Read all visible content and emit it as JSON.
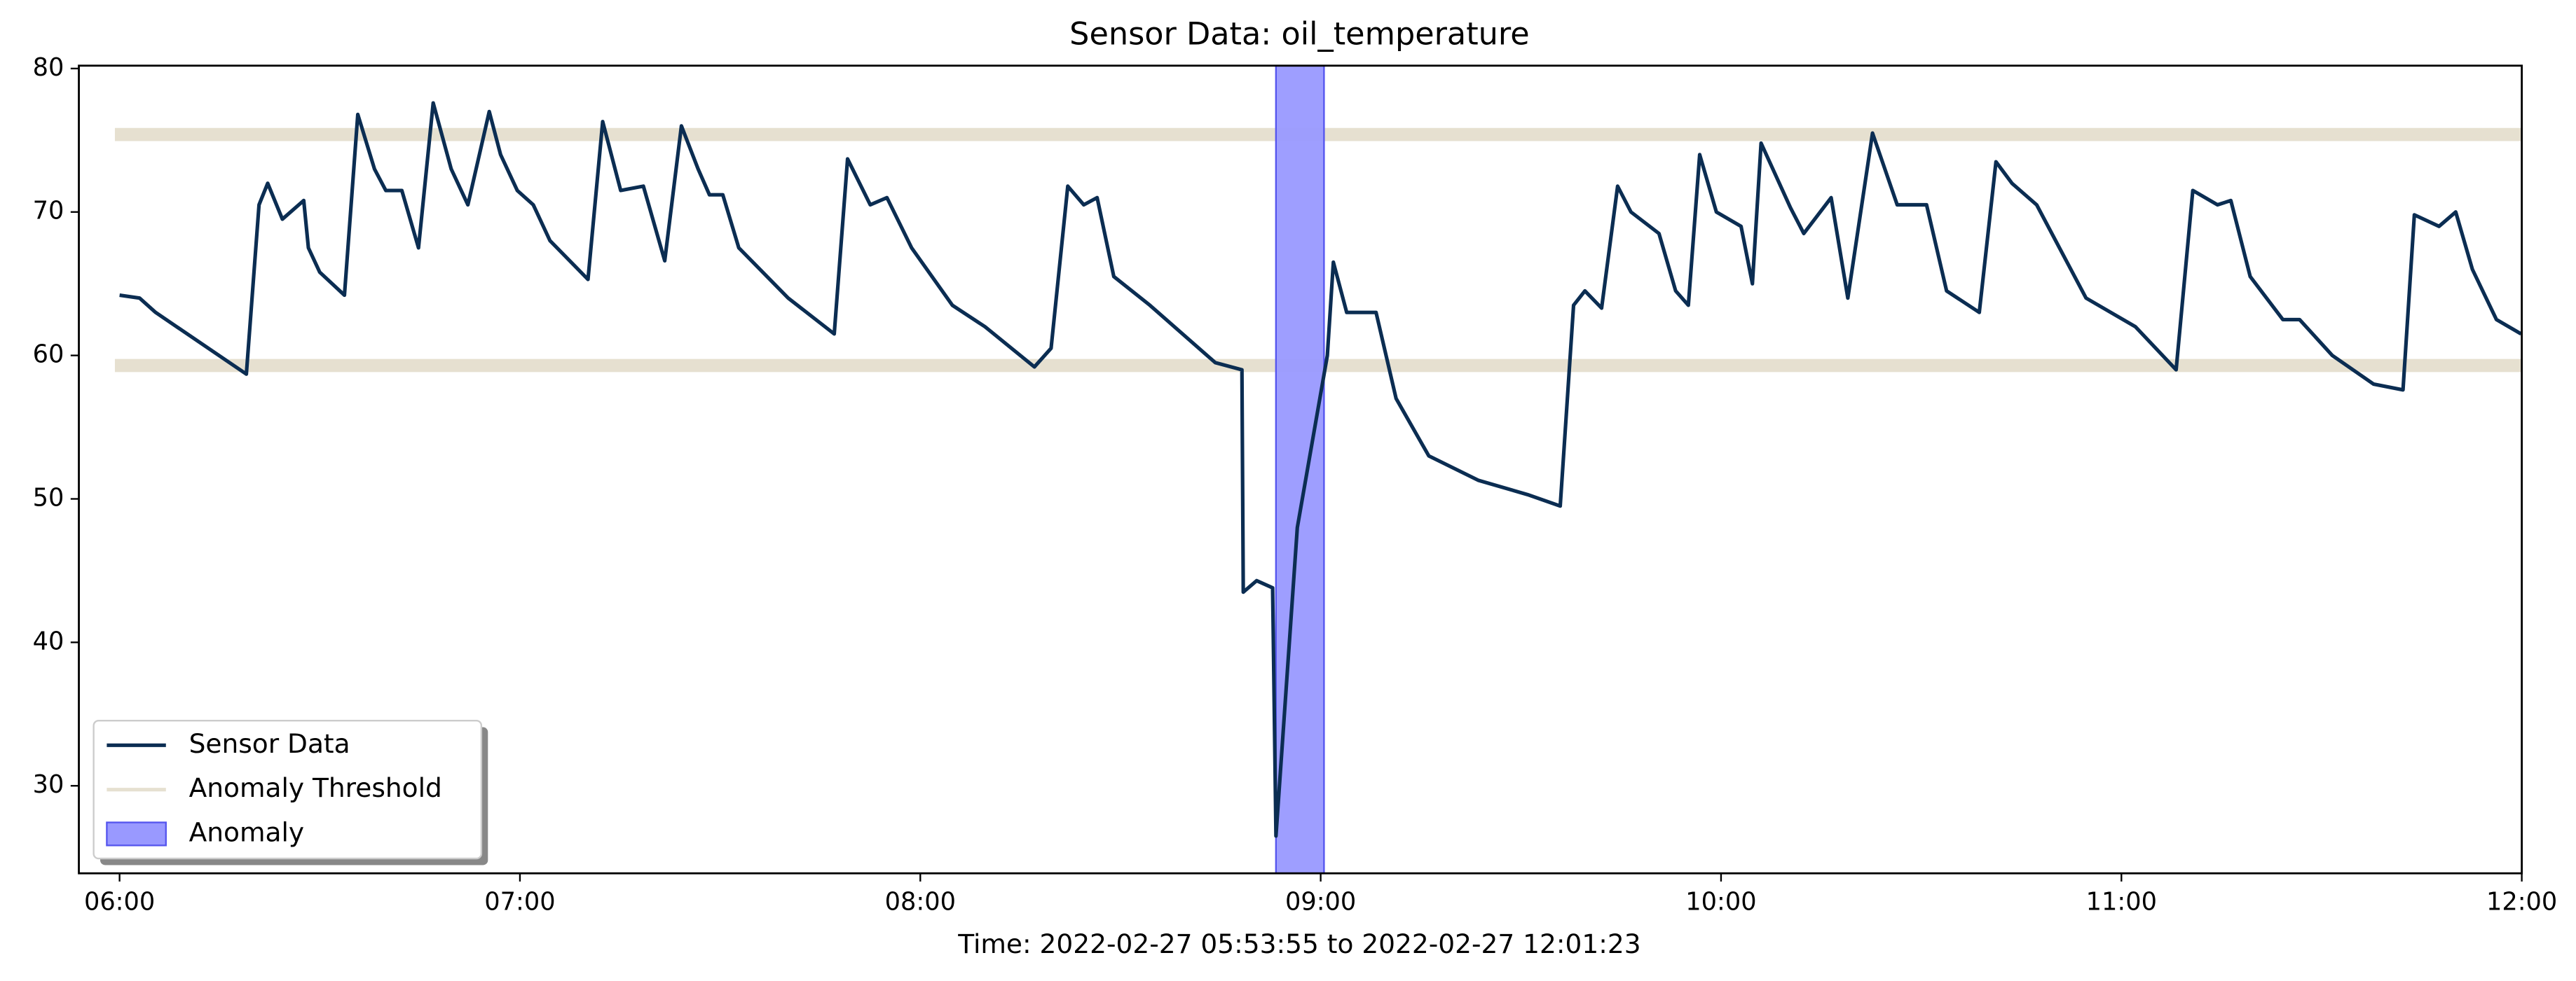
{
  "chart_data": {
    "type": "line",
    "title": "Sensor Data: oil_temperature",
    "x_label": "Time: 2022-02-27 05:53:55 to 2022-02-27 12:01:23",
    "xlim": [
      353.9,
      720
    ],
    "xticks": [
      {
        "value": 360,
        "label": "06:00"
      },
      {
        "value": 420,
        "label": "07:00"
      },
      {
        "value": 480,
        "label": "08:00"
      },
      {
        "value": 540,
        "label": "09:00"
      },
      {
        "value": 600,
        "label": "10:00"
      },
      {
        "value": 660,
        "label": "11:00"
      },
      {
        "value": 720,
        "label": "12:00"
      }
    ],
    "ylim": [
      23.9,
      80.2
    ],
    "yticks": [
      30,
      40,
      50,
      60,
      70,
      80
    ],
    "legend": "lower left",
    "series": [
      {
        "name": "Sensor Data",
        "color": "#0b2d52",
        "x": [
          360.0,
          363.0,
          365.4,
          379.0,
          380.9,
          382.2,
          384.4,
          387.6,
          388.3,
          390.0,
          393.7,
          395.7,
          398.2,
          399.9,
          402.3,
          404.8,
          407.0,
          409.7,
          412.2,
          415.4,
          417.1,
          419.6,
          422.0,
          424.5,
          430.2,
          432.4,
          435.1,
          438.5,
          441.7,
          444.2,
          446.7,
          448.4,
          450.4,
          452.8,
          460.2,
          467.1,
          469.1,
          472.5,
          475.0,
          478.7,
          484.8,
          489.7,
          497.1,
          499.6,
          502.1,
          504.5,
          506.5,
          509.0,
          514.4,
          524.2,
          528.2,
          528.4,
          530.4,
          532.8,
          533.3,
          536.5,
          541.0,
          541.9,
          543.9,
          548.3,
          551.3,
          556.2,
          563.6,
          571.0,
          575.9,
          577.9,
          579.6,
          582.1,
          584.5,
          586.5,
          590.7,
          593.2,
          595.1,
          596.8,
          599.3,
          603.0,
          604.7,
          606.0,
          610.4,
          612.4,
          616.5,
          619.0,
          622.7,
          626.4,
          630.8,
          633.8,
          638.7,
          641.2,
          643.6,
          647.3,
          654.7,
          662.1,
          668.2,
          670.7,
          674.4,
          676.4,
          679.3,
          684.2,
          686.7,
          691.6,
          697.8,
          702.2,
          703.9,
          707.6,
          710.1,
          712.6,
          716.2,
          719.9
        ],
        "values": [
          64.2,
          64.0,
          63.0,
          58.7,
          70.5,
          72.0,
          69.5,
          70.8,
          67.5,
          65.8,
          64.2,
          76.8,
          73.0,
          71.5,
          71.5,
          67.5,
          77.6,
          73.0,
          70.5,
          77.0,
          74.0,
          71.5,
          70.5,
          68.0,
          65.3,
          76.3,
          71.5,
          71.8,
          66.6,
          76.0,
          73.0,
          71.2,
          71.2,
          67.5,
          64.0,
          61.5,
          73.7,
          70.5,
          71.0,
          67.5,
          63.5,
          62.0,
          59.2,
          60.5,
          71.8,
          70.5,
          71.0,
          65.5,
          63.5,
          59.5,
          59.0,
          43.5,
          44.3,
          43.8,
          26.5,
          48.0,
          60.0,
          66.5,
          63.0,
          63.0,
          57.0,
          53.0,
          51.3,
          50.3,
          49.5,
          63.5,
          64.5,
          63.3,
          71.8,
          70.0,
          68.5,
          64.5,
          63.5,
          74.0,
          70.0,
          69.0,
          65.0,
          74.8,
          70.3,
          68.5,
          71.0,
          64.0,
          75.5,
          70.5,
          70.5,
          64.5,
          63.0,
          73.5,
          72.0,
          70.5,
          64.0,
          62.0,
          59.0,
          71.5,
          70.5,
          70.8,
          65.5,
          62.5,
          62.5,
          60.0,
          58.0,
          57.6,
          69.8,
          69.0,
          70.0,
          66.0,
          62.5,
          61.5
        ]
      }
    ],
    "threshold": {
      "name": "Anomaly Threshold",
      "color": "#e6e0d0",
      "values": [
        59.3,
        75.4
      ],
      "xrange": [
        359.3,
        720
      ]
    },
    "anomaly": {
      "name": "Anomaly",
      "color": "#9999ff",
      "edge_color": "#5555ee",
      "xrange": [
        533.3,
        540.5
      ]
    }
  }
}
